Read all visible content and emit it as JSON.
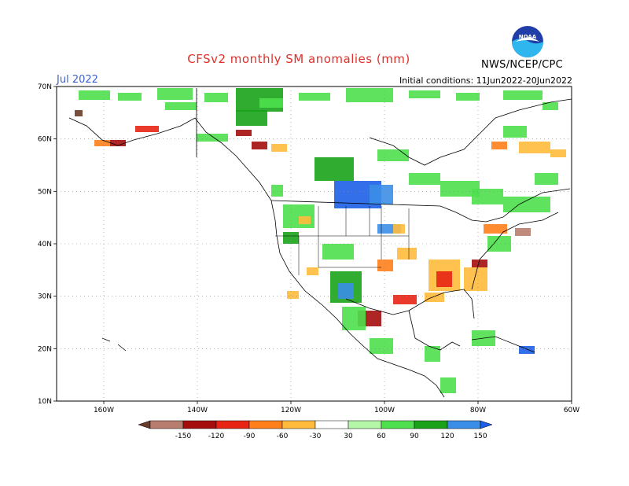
{
  "title": "CFSv2 monthly SM anomalies (mm)",
  "month": "Jul 2022",
  "initial_conditions": "Initial conditions: 11Jun2022-20Jun2022",
  "org": "NWS/NCEP/CPC",
  "logo_text": "NOAA",
  "map": {
    "lat_labels": [
      "10N",
      "20N",
      "30N",
      "40N",
      "50N",
      "60N",
      "70N"
    ],
    "lon_labels": [
      "160W",
      "140W",
      "120W",
      "100W",
      "80W",
      "60W"
    ]
  },
  "legend": {
    "labels": [
      "-150",
      "-120",
      "-90",
      "-60",
      "-30",
      "30",
      "60",
      "90",
      "120",
      "150"
    ],
    "colors": [
      "#6b3b2a",
      "#b87d6e",
      "#a50d0d",
      "#e82514",
      "#ff7f1a",
      "#ffbb3c",
      "#ffffff",
      "#b4f7a6",
      "#4ee04e",
      "#1aa31a",
      "#3b8ee8",
      "#1c5fe6"
    ]
  }
}
